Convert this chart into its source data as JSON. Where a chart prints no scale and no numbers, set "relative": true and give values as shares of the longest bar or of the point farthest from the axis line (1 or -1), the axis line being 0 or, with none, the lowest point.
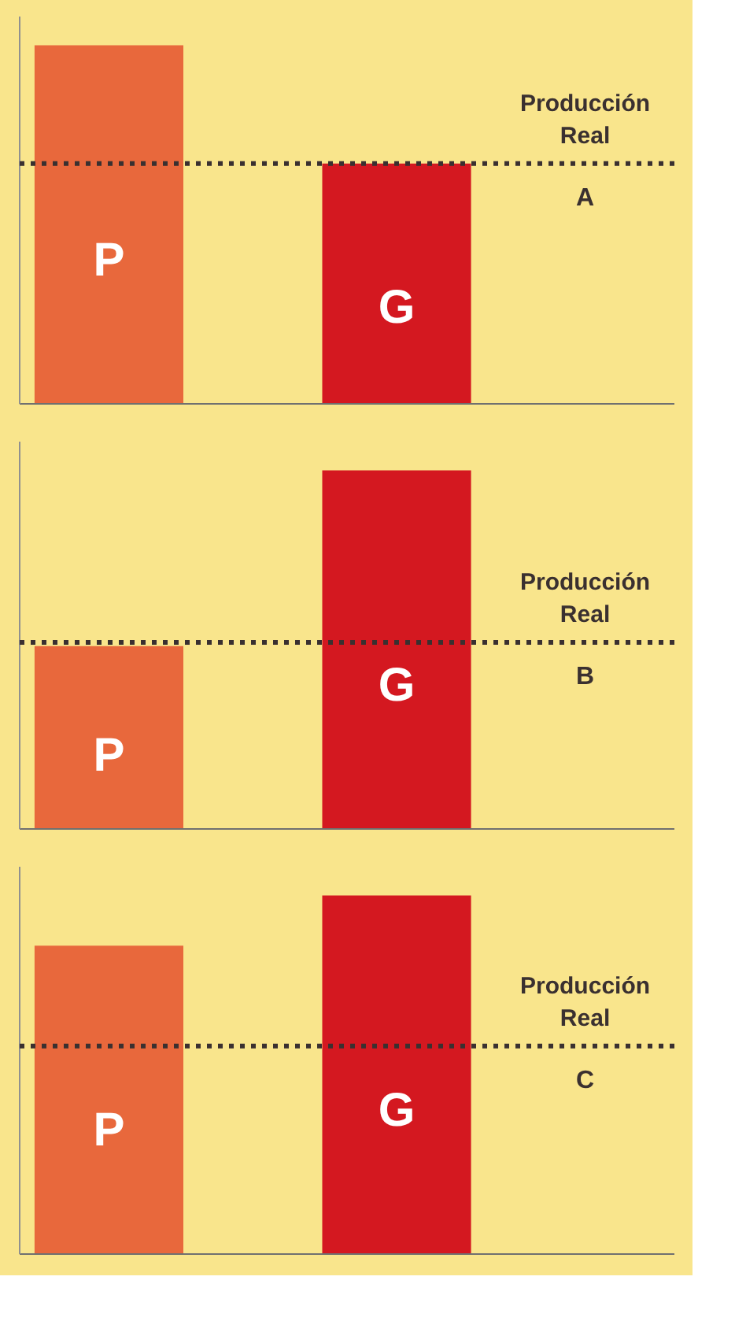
{
  "chart_data": [
    {
      "type": "bar",
      "relative": true,
      "categories": [
        "P",
        "G"
      ],
      "colors": [
        "#e8683c",
        "#d41820"
      ],
      "annotations": [
        "A"
      ],
      "ref_lines": [
        {
          "axis": "y",
          "value": 0.67,
          "label": "Producción\nReal",
          "color": "#3a3030",
          "line_style": "dotted"
        }
      ],
      "values": [
        1,
        0.67
      ]
    },
    {
      "type": "bar",
      "relative": true,
      "categories": [
        "P",
        "G"
      ],
      "colors": [
        "#e8683c",
        "#d41820"
      ],
      "annotations": [
        "B"
      ],
      "ref_lines": [
        {
          "axis": "y",
          "value": 0.52,
          "label": "Producción\nReal",
          "color": "#3a3030",
          "line_style": "dotted"
        }
      ],
      "values": [
        0.51,
        1
      ]
    },
    {
      "type": "bar",
      "relative": true,
      "categories": [
        "P",
        "G"
      ],
      "colors": [
        "#e8683c",
        "#d41820"
      ],
      "annotations": [
        "C"
      ],
      "ref_lines": [
        {
          "axis": "y",
          "value": 0.58,
          "label": "Producción\nReal",
          "color": "#3a3030",
          "line_style": "dotted"
        }
      ],
      "values": [
        0.86,
        1
      ]
    }
  ]
}
